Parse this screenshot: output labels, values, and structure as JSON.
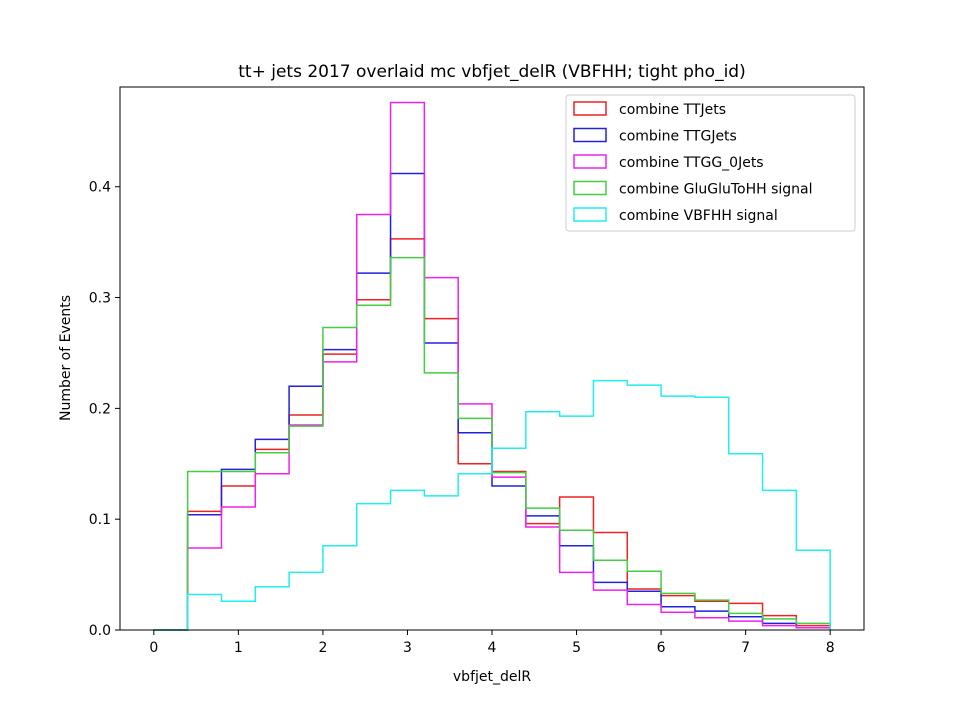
{
  "chart_data": {
    "type": "step-histogram",
    "title": "tt+ jets 2017 overlaid mc vbfjet_delR (VBFHH; tight pho_id)",
    "xlabel": "vbfjet_delR",
    "ylabel": "Number of Events",
    "xlim": [
      -0.4,
      8.4
    ],
    "ylim": [
      0,
      0.49
    ],
    "xticks": [
      0,
      1,
      2,
      3,
      4,
      5,
      6,
      7,
      8
    ],
    "yticks": [
      0.0,
      0.1,
      0.2,
      0.3,
      0.4
    ],
    "xtick_labels": [
      "0",
      "1",
      "2",
      "3",
      "4",
      "5",
      "6",
      "7",
      "8"
    ],
    "ytick_labels": [
      "0.0",
      "0.1",
      "0.2",
      "0.3",
      "0.4"
    ],
    "bin_edges": [
      0.0,
      0.4,
      0.8,
      1.2,
      1.6,
      2.0,
      2.4,
      2.8,
      3.2,
      3.6,
      4.0,
      4.4,
      4.8,
      5.2,
      5.6,
      6.0,
      6.4,
      6.8,
      7.2,
      7.6,
      8.0
    ],
    "legend_position": "upper-right",
    "grid": false,
    "series": [
      {
        "name": "combine TTJets",
        "color": "#ee2222",
        "values": [
          0.0,
          0.107,
          0.13,
          0.163,
          0.194,
          0.249,
          0.298,
          0.353,
          0.281,
          0.15,
          0.143,
          0.096,
          0.12,
          0.088,
          0.037,
          0.031,
          0.026,
          0.024,
          0.013,
          0.004
        ]
      },
      {
        "name": "combine TTGJets",
        "color": "#2222dd",
        "values": [
          0.0,
          0.104,
          0.145,
          0.172,
          0.22,
          0.253,
          0.322,
          0.412,
          0.259,
          0.178,
          0.13,
          0.103,
          0.076,
          0.043,
          0.035,
          0.021,
          0.017,
          0.012,
          0.006,
          0.002
        ]
      },
      {
        "name": "combine TTGG_0Jets",
        "color": "#ee22ee",
        "values": [
          0.0,
          0.074,
          0.111,
          0.141,
          0.185,
          0.242,
          0.375,
          0.476,
          0.318,
          0.204,
          0.138,
          0.093,
          0.052,
          0.036,
          0.023,
          0.016,
          0.011,
          0.008,
          0.004,
          0.002
        ]
      },
      {
        "name": "combine GluGluToHH signal",
        "color": "#44cc44",
        "values": [
          0.0,
          0.143,
          0.143,
          0.16,
          0.184,
          0.273,
          0.293,
          0.336,
          0.232,
          0.191,
          0.142,
          0.11,
          0.09,
          0.063,
          0.053,
          0.033,
          0.027,
          0.015,
          0.01,
          0.006
        ]
      },
      {
        "name": "combine VBFHH signal",
        "color": "#22eeee",
        "values": [
          0.0,
          0.032,
          0.026,
          0.039,
          0.052,
          0.076,
          0.114,
          0.126,
          0.121,
          0.141,
          0.164,
          0.197,
          0.193,
          0.225,
          0.221,
          0.211,
          0.21,
          0.159,
          0.126,
          0.072
        ]
      }
    ]
  }
}
